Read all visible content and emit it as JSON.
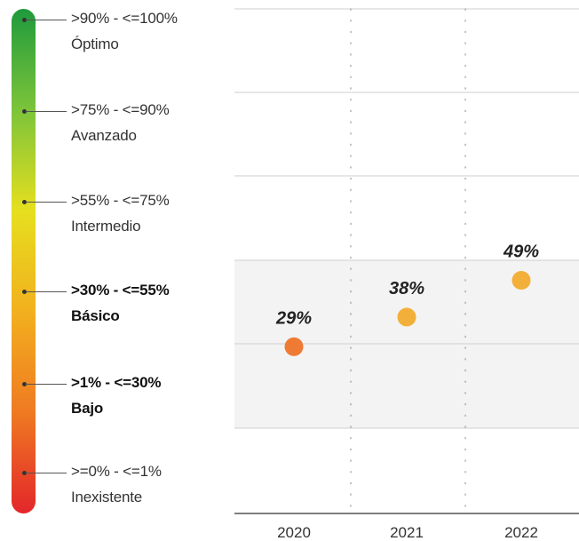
{
  "legend": {
    "levels": [
      {
        "range": ">90% - <=100%",
        "name": "Óptimo",
        "emphasis": false
      },
      {
        "range": ">75% - <=90%",
        "name": "Avanzado",
        "emphasis": false
      },
      {
        "range": ">55% - <=75%",
        "name": "Intermedio",
        "emphasis": false
      },
      {
        "range": ">30% - <=55%",
        "name": "Básico",
        "emphasis": true
      },
      {
        "range": ">1% - <=30%",
        "name": "Bajo",
        "emphasis": true
      },
      {
        "range": ">=0% - <=1%",
        "name": "Inexistente",
        "emphasis": false
      }
    ],
    "gradient_colors": [
      "#1e9a3c",
      "#7cc43a",
      "#e6df1f",
      "#f2b01e",
      "#ef7a22",
      "#e3262a"
    ]
  },
  "chart_data": {
    "type": "scatter",
    "title": "",
    "xlabel": "",
    "ylabel": "",
    "categories": [
      "2020",
      "2021",
      "2022"
    ],
    "values": [
      29,
      38,
      49
    ],
    "data_labels": [
      "29%",
      "38%",
      "49%"
    ],
    "point_colors": [
      "#ef7a33",
      "#f2b03a",
      "#f2b03a"
    ],
    "band_boundaries": [
      0,
      1,
      30,
      55,
      75,
      90,
      100
    ],
    "highlighted_bands": [
      [
        1,
        30
      ],
      [
        30,
        55
      ]
    ],
    "highlight_color": "#f3f3f3",
    "grid": true
  }
}
